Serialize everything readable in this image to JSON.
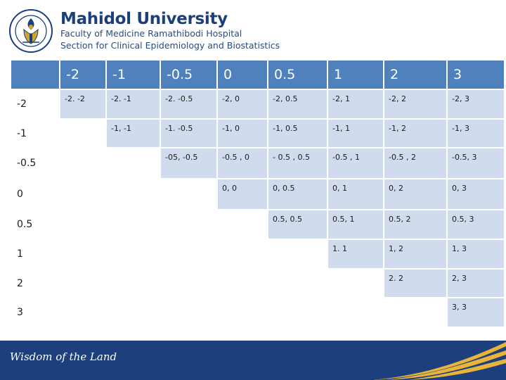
{
  "header": {
    "logo_text": "มหาวิทยาลัยมหิดล",
    "university": "Mahidol University",
    "faculty": "Faculty of Medicine Ramathibodi Hospital",
    "section": "Section for Clinical Epidemiology and Biostatistics"
  },
  "colors": {
    "header_blue": "#4f81bd",
    "cell_fill": "#d0dcee",
    "title_navy": "#1b3f7a",
    "footer_navy": "#1d3f7d",
    "footer_gold": "#e8b53a"
  },
  "table": {
    "col_headers": [
      "-2",
      "-1",
      "-0.5",
      "0",
      "0.5",
      "1",
      "2",
      "3"
    ],
    "rows": [
      {
        "label": "-2",
        "cells": [
          "-2.  -2",
          "-2.  -1",
          "-2.  -0.5",
          "-2,  0",
          "-2,  0.5",
          " -2,  1",
          "-2,  2",
          " -2,  3"
        ]
      },
      {
        "label": "-1",
        "cells": [
          "",
          "-1,     -1",
          "-1.  -0.5",
          "-1,  0",
          "-1,  0.5",
          "-1,  1",
          "-1,   2",
          " -1,  3"
        ]
      },
      {
        "label": "-0.5",
        "cells": [
          "",
          "",
          "-05,   -0.5",
          " -0.5 ,  0",
          "- 0.5 ,  0.5",
          " -0.5 ,  1",
          "-0.5 ,   2",
          " -0.5,  3"
        ]
      },
      {
        "label": "0",
        "cells": [
          "",
          "",
          "",
          "0,   0",
          "0, 0.5",
          "0,   1",
          "  0,   2",
          "0,   3"
        ]
      },
      {
        "label": "0.5",
        "cells": [
          "",
          "",
          "",
          "",
          "0.5, 0.5",
          "0.5,  1",
          "  0.5,  2",
          "  0.5,  3"
        ]
      },
      {
        "label": "1",
        "cells": [
          "",
          "",
          "",
          "",
          "",
          "1.  1",
          "1,   2",
          "1,  3"
        ]
      },
      {
        "label": "2",
        "cells": [
          "",
          "",
          "",
          "",
          "",
          "",
          "2.   2",
          "2,  3"
        ]
      },
      {
        "label": "3",
        "cells": [
          "",
          "",
          "",
          "",
          "",
          "",
          "",
          "3,    3"
        ]
      }
    ]
  },
  "footer": {
    "motto": "Wisdom of the Land"
  }
}
